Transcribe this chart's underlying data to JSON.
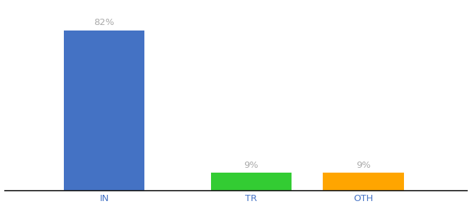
{
  "categories": [
    "IN",
    "TR",
    "OTH"
  ],
  "values": [
    82,
    9,
    9
  ],
  "bar_colors": [
    "#4472C4",
    "#33CC33",
    "#FFA500"
  ],
  "labels": [
    "82%",
    "9%",
    "9%"
  ],
  "ylim": [
    0,
    95
  ],
  "background_color": "#ffffff",
  "label_color": "#aaaaaa",
  "axis_line_color": "#111111",
  "tick_label_color": "#4472C4",
  "label_fontsize": 9.5,
  "tick_fontsize": 9.5,
  "bar_width": 0.55,
  "x_positions": [
    0.15,
    0.5,
    0.75
  ],
  "xlim": [
    -0.05,
    1.0
  ]
}
